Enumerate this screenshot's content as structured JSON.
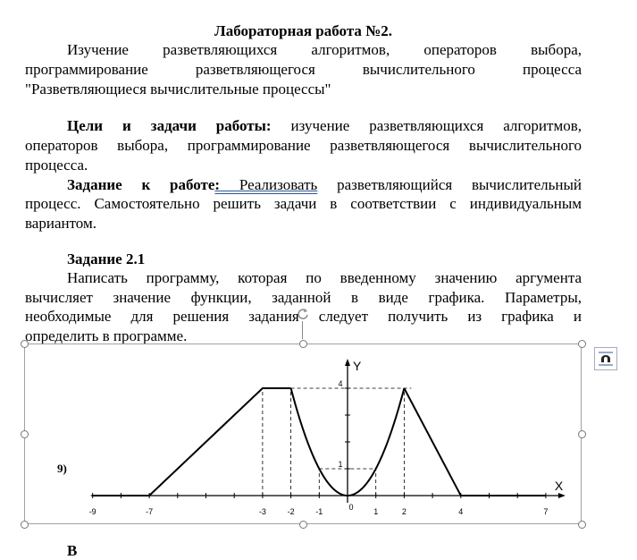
{
  "document": {
    "title": "Лабораторная работа №2.",
    "intro_lines": [
      "Изучение разветвляющихся алгоритмов, операторов выбора,",
      "программирование разветвляющегося вычислительного процесса",
      "\"Разветвляющиеся вычислительные процессы\""
    ],
    "goals_label": "Цели и задачи работы:",
    "goals_lines": [
      " изучение разветвляющихся алгоритмов,",
      "операторов выбора, программирование разветвляющегося вычислительного",
      "процесса."
    ],
    "task_label": "Задание к работе",
    "task_colon": ":",
    "task_link": " Реализовать",
    "task_lines": [
      " разветвляющийся вычислительный",
      "процесс. Самостоятельно решить задачи в соответствии с индивидуальным",
      "вариантом."
    ],
    "section_title": "Задание 2.1",
    "section_lines": [
      "Написать программу, которая по введенному значению аргумента",
      "вычисляет значение функции, заданной в виде графика. Параметры,",
      "необходимые для решения задания следует получить из графика и",
      "определить в программе."
    ],
    "variant_label": "9)",
    "next_partial": "В"
  },
  "chart_data": {
    "type": "line",
    "xlabel": "X",
    "ylabel": "Y",
    "x_ticks": [
      -9,
      -7,
      -3,
      -2,
      -1,
      0,
      1,
      2,
      4,
      7
    ],
    "y_ticks": [
      1,
      4
    ],
    "xlim": [
      -9,
      7
    ],
    "ylim": [
      0,
      4
    ],
    "segments": [
      {
        "kind": "linear",
        "points": [
          [
            -9,
            0
          ],
          [
            -7,
            0
          ],
          [
            -3,
            4
          ],
          [
            -2,
            4
          ]
        ]
      },
      {
        "kind": "parabola",
        "formula": "y = x^2",
        "domain": [
          -2,
          2
        ]
      },
      {
        "kind": "linear",
        "points": [
          [
            2,
            4
          ],
          [
            4,
            0
          ],
          [
            7,
            0
          ]
        ]
      }
    ],
    "guide_lines": [
      [
        -3,
        4
      ],
      [
        -2,
        4
      ],
      [
        -1,
        1
      ],
      [
        1,
        1
      ],
      [
        2,
        4
      ]
    ]
  },
  "icons": {
    "layout_options": "layout-options-icon",
    "rotate": "rotate-handle-icon"
  }
}
